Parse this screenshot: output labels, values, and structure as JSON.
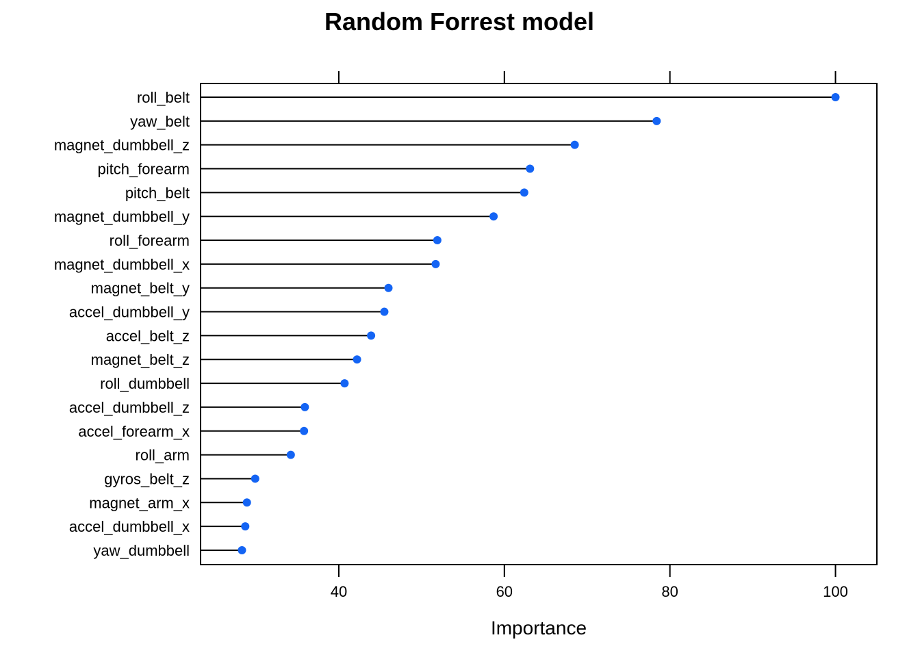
{
  "chart_data": {
    "type": "dot",
    "title": "Random Forrest model",
    "xlabel": "Importance",
    "ylabel": "",
    "xlim": [
      23.3,
      105
    ],
    "xticks": [
      40,
      60,
      80,
      100
    ],
    "grid": false,
    "point_color": "#1464F4",
    "categories": [
      "roll_belt",
      "yaw_belt",
      "magnet_dumbbell_z",
      "pitch_forearm",
      "pitch_belt",
      "magnet_dumbbell_y",
      "roll_forearm",
      "magnet_dumbbell_x",
      "magnet_belt_y",
      "accel_dumbbell_y",
      "accel_belt_z",
      "magnet_belt_z",
      "roll_dumbbell",
      "accel_dumbbell_z",
      "accel_forearm_x",
      "roll_arm",
      "gyros_belt_z",
      "magnet_arm_x",
      "accel_dumbbell_x",
      "yaw_dumbbell"
    ],
    "values": [
      100.0,
      78.4,
      68.5,
      63.1,
      62.4,
      58.7,
      51.9,
      51.7,
      46.0,
      45.5,
      43.9,
      42.2,
      40.7,
      35.9,
      35.8,
      34.2,
      29.9,
      28.9,
      28.7,
      28.3
    ]
  }
}
